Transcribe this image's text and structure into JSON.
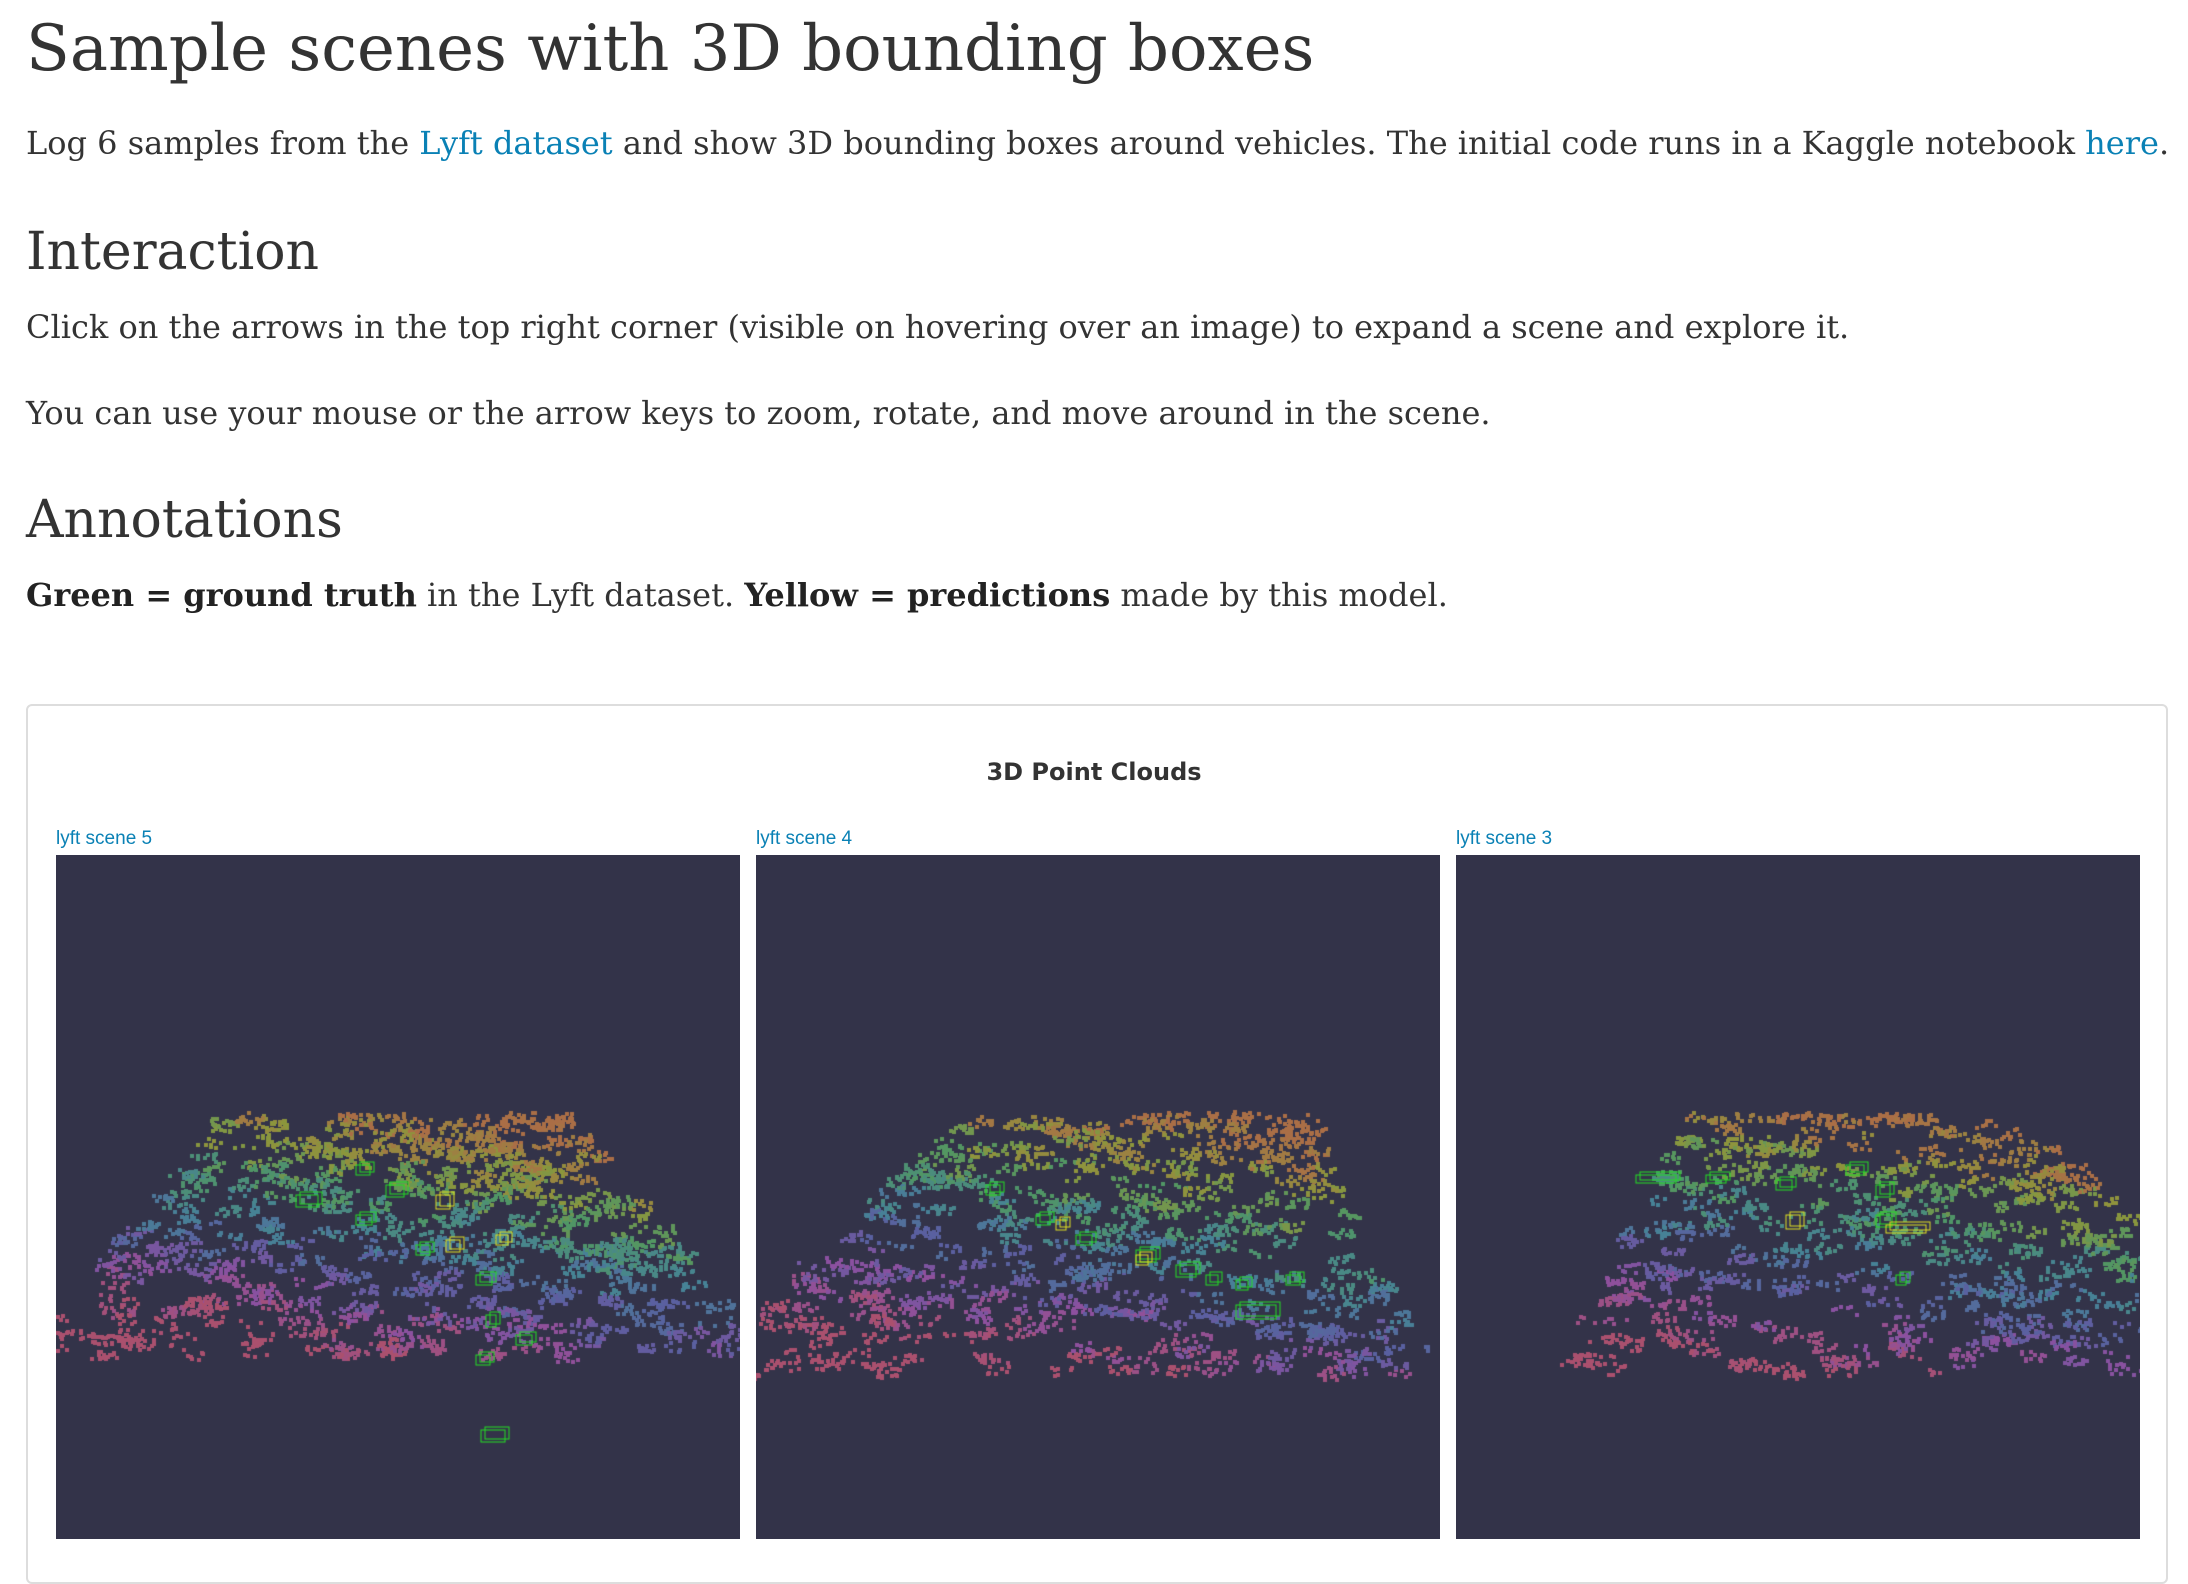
{
  "header": {
    "title": "Sample scenes with 3D bounding boxes",
    "intro": {
      "prefix": "Log 6 samples from the ",
      "link1": "Lyft dataset",
      "middle": " and show 3D bounding boxes around vehicles. The initial code runs in a Kaggle notebook ",
      "link2": "here",
      "suffix": "."
    }
  },
  "interaction": {
    "heading": "Interaction",
    "p1": "Click on the arrows in the top right corner (visible on hovering over an image) to expand a scene and explore it.",
    "p2": "You can use your mouse or the arrow keys to zoom, rotate, and move around in the scene."
  },
  "annotations": {
    "heading": "Annotations",
    "green_bold": "Green = ground truth",
    "green_rest": " in the Lyft dataset. ",
    "yellow_bold": "Yellow = predictions",
    "yellow_rest": " made by this model."
  },
  "panel": {
    "title": "3D Point Clouds",
    "scenes": [
      {
        "label": "lyft scene 5"
      },
      {
        "label": "lyft scene 4"
      },
      {
        "label": "lyft scene 3"
      }
    ]
  },
  "colors": {
    "link": "#0a81b5",
    "scene_background": "#333349",
    "ground_truth_box": "#22dd22",
    "prediction_box": "#e0e020"
  }
}
